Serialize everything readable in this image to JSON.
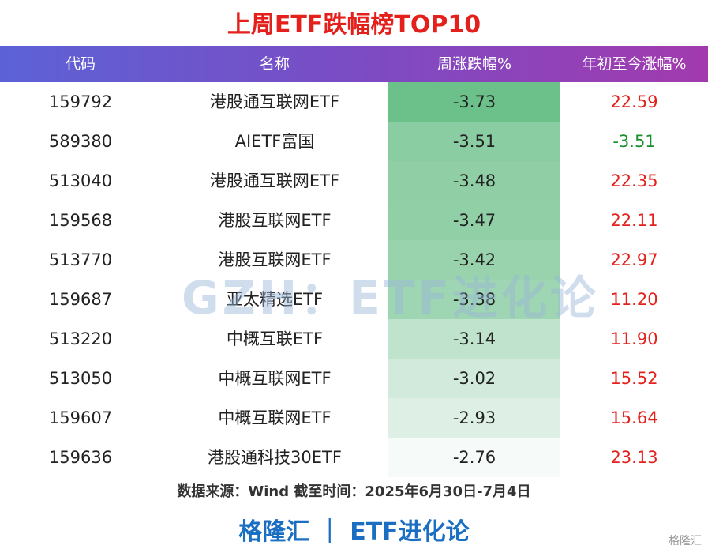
{
  "header": {
    "title": "上周ETF跌幅榜TOP10"
  },
  "table": {
    "columns": [
      "代码",
      "名称",
      "周涨跌幅%",
      "年初至今涨幅%"
    ],
    "rows": [
      [
        "159792",
        "港股通互联网ETF",
        "-3.73",
        "22.59"
      ],
      [
        "589380",
        "AIETF富国",
        "-3.51",
        "-3.51"
      ],
      [
        "513040",
        "港股通互联网ETF",
        "-3.48",
        "22.35"
      ],
      [
        "159568",
        "港股互联网ETF",
        "-3.47",
        "22.11"
      ],
      [
        "513770",
        "港股互联网ETF",
        "-3.42",
        "22.97"
      ],
      [
        "159687",
        "亚太精选ETF",
        "-3.38",
        "11.20"
      ],
      [
        "513220",
        "中概互联ETF",
        "-3.14",
        "11.90"
      ],
      [
        "513050",
        "中概互联网ETF",
        "-3.02",
        "15.52"
      ],
      [
        "159607",
        "中概互联网ETF",
        "-2.93",
        "15.64"
      ],
      [
        "159636",
        "港股通科技30ETF",
        "-2.76",
        "23.13"
      ]
    ]
  },
  "source": "数据来源：Wind 截至时间：2025年6月30日-7月4日",
  "footer": "格隆汇 ｜ ETF进化论",
  "watermark": "GZH：ETF进化论",
  "corner_logo": "格隆汇"
}
